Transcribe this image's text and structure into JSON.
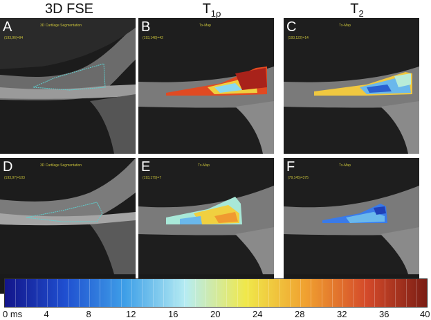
{
  "columns": {
    "fse": "3D FSE",
    "t1rho_main": "T",
    "t1rho_sub": "1ρ",
    "t2_main": "T",
    "t2_sub": "2"
  },
  "panels": [
    {
      "id": "A",
      "label": "A",
      "tag": "3D Cartilage Segmentation",
      "coords": "(193,96)=94"
    },
    {
      "id": "B",
      "label": "B",
      "tag": "Tx-Map",
      "coords": "(193,148)=42"
    },
    {
      "id": "C",
      "label": "C",
      "tag": "Tx-Map",
      "coords": "(193,122)=14"
    },
    {
      "id": "D",
      "label": "D",
      "tag": "3D Cartilage Segmentation",
      "coords": "(193,97)=103"
    },
    {
      "id": "E",
      "label": "E",
      "tag": "Tx-Map",
      "coords": "(193,179)=7"
    },
    {
      "id": "F",
      "label": "F",
      "tag": "Tx-Map",
      "coords": "(79,145)=375"
    }
  ],
  "colorbar": {
    "ticks": [
      "0 ms",
      "4",
      "8",
      "12",
      "16",
      "20",
      "24",
      "28",
      "32",
      "36",
      "40"
    ],
    "colors": [
      "#13158a",
      "#1f4fd0",
      "#3fa0e8",
      "#b6ecf2",
      "#f0e84a",
      "#f0a030",
      "#d44a2a",
      "#7a1d14"
    ]
  }
}
